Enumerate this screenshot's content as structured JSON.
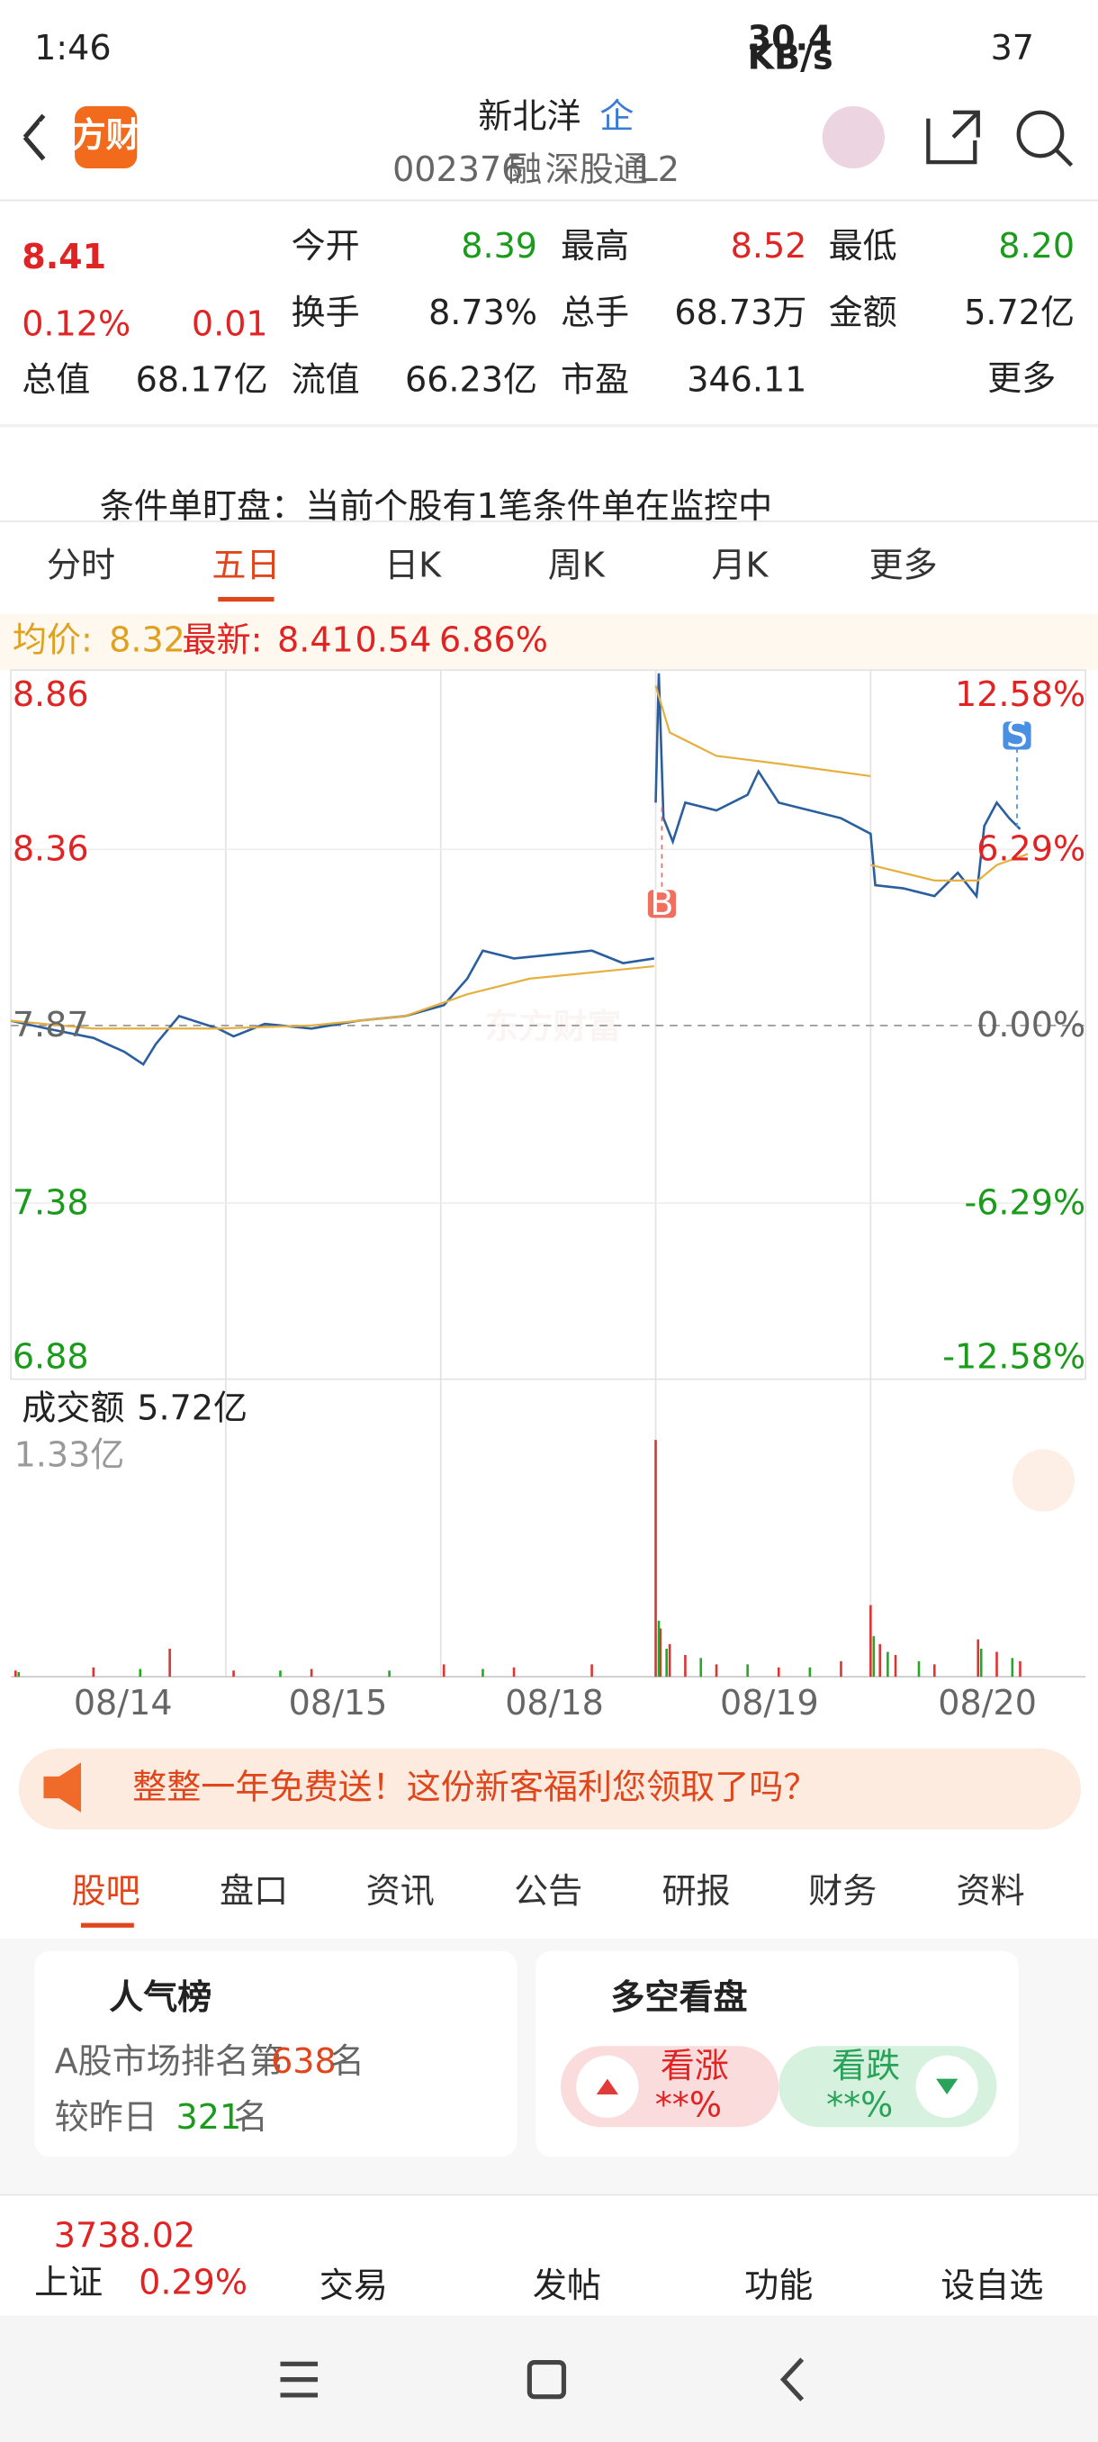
{
  "status": {
    "time": "1:46",
    "speed": "30.4",
    "speed_unit": "KB/s",
    "battery": "37"
  },
  "header": {
    "logo": "东方财富",
    "name": "新北洋",
    "badge": "企",
    "code": "002376",
    "tags": [
      "融",
      "深股通",
      "L2"
    ]
  },
  "quote": {
    "price": "8.41",
    "pct": "0.12%",
    "change": "0.01",
    "fields": [
      {
        "label": "今开",
        "value": "8.39"
      },
      {
        "label": "最高",
        "value": "8.52"
      },
      {
        "label": "最低",
        "value": "8.20"
      },
      {
        "label": "换手",
        "value": "8.73%"
      },
      {
        "label": "总手",
        "value": "68.73万"
      },
      {
        "label": "金额",
        "value": "5.72亿"
      },
      {
        "label": "总值",
        "value": "68.17亿"
      },
      {
        "label": "流值",
        "value": "66.23亿"
      },
      {
        "label": "市盈",
        "value": "346.11"
      }
    ],
    "more": "更多"
  },
  "notice": "条件单盯盘：当前个股有1笔条件单在监控中",
  "chart_tabs": [
    "分时",
    "五日",
    "日K",
    "周K",
    "月K",
    "更多"
  ],
  "info": {
    "avg_label": "均价:",
    "avg": "8.32",
    "last_label": "最新:",
    "last": "8.41",
    "change": "0.54",
    "pct": "6.86%"
  },
  "axis_left": [
    "8.86",
    "8.36",
    "7.87",
    "7.38",
    "6.88"
  ],
  "axis_right": [
    "12.58%",
    "6.29%",
    "0.00%",
    "-6.29%",
    "-12.58%"
  ],
  "markers": [
    "B",
    "S"
  ],
  "watermark": "东方财富",
  "volume": {
    "label": "成交额",
    "value": "5.72亿",
    "max": "1.33亿"
  },
  "dates": [
    "08/14",
    "08/15",
    "08/18",
    "08/19",
    "08/20"
  ],
  "banner": "整整一年免费送！这份新客福利您领取了吗？",
  "section_tabs": [
    "股吧",
    "盘口",
    "资讯",
    "公告",
    "研报",
    "财务",
    "资料"
  ],
  "popularity": {
    "title": "人气榜",
    "rank_prefix": "A股市场排名第",
    "rank": "638",
    "rank_suffix": "名",
    "delta_prefix": "较昨日",
    "delta": "321",
    "delta_suffix": "名"
  },
  "sentiment": {
    "title": "多空看盘",
    "up": "看涨",
    "up_value": "**%",
    "down": "看跌",
    "down_value": "**%"
  },
  "bottom": {
    "index_value": "3738.02",
    "index_name": "上证",
    "index_pct": "0.29%",
    "items": [
      "交易",
      "发帖",
      "功能",
      "设自选"
    ]
  }
}
